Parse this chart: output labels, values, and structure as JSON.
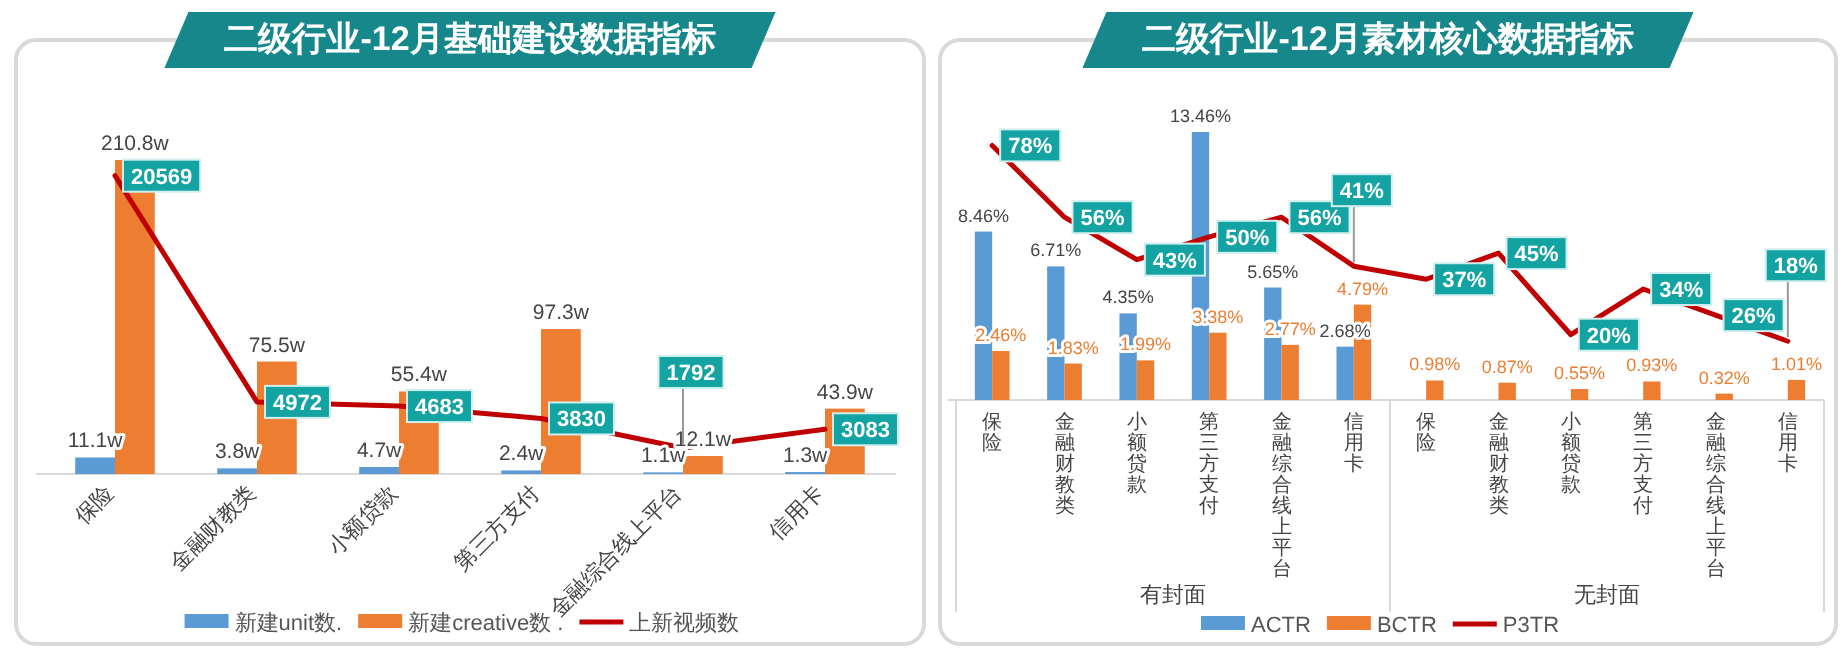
{
  "chart_data": [
    {
      "type": "bar",
      "title": "二级行业-12月基础建设数据指标",
      "legend": "bottom",
      "data_labels": true,
      "categories": [
        "保险",
        "金融财教类",
        "小额贷款",
        "第三方支付",
        "金融综合线上平台",
        "信用卡"
      ],
      "series": [
        {
          "name": "新建unit数.",
          "color": "#5b9bd5",
          "values": [
            11.1,
            3.8,
            4.7,
            2.4,
            1.1,
            1.3
          ],
          "value_labels": [
            "11.1w",
            "3.8w",
            "4.7w",
            "2.4w",
            "1.1w",
            "1.3w"
          ]
        },
        {
          "name": "新建creative数 .",
          "color": "#ed7d31",
          "values": [
            210.8,
            75.5,
            55.4,
            97.3,
            12.1,
            43.9
          ],
          "value_labels": [
            "210.8w",
            "75.5w",
            "55.4w",
            "97.3w",
            "12.1w",
            "43.9w"
          ]
        },
        {
          "name": "上新视频数",
          "type": "line",
          "axis": "y2",
          "color": "#c00000",
          "values": [
            20569,
            4972,
            4683,
            3830,
            1792,
            3083
          ]
        }
      ]
    },
    {
      "type": "bar",
      "title": "二级行业-12月素材核心数据指标",
      "legend": "bottom",
      "data_labels": true,
      "categories": [
        "保险",
        "金融财教类",
        "小额贷款",
        "第三方支付",
        "金融综合线上平台",
        "信用卡",
        "保险",
        "金融财教类",
        "小额贷款",
        "第三方支付",
        "金融综合线上平台",
        "信用卡"
      ],
      "annotations": [
        "有封面",
        "无封面"
      ],
      "series": [
        {
          "name": "ACTR",
          "color": "#5b9bd5",
          "values": [
            8.46,
            6.71,
            4.35,
            13.46,
            5.65,
            2.68,
            null,
            null,
            null,
            null,
            null,
            null
          ],
          "value_labels": [
            "8.46%",
            "6.71%",
            "4.35%",
            "13.46%",
            "5.65%",
            "2.68%",
            null,
            null,
            null,
            null,
            null,
            null
          ]
        },
        {
          "name": "BCTR",
          "color": "#ed7d31",
          "values": [
            2.46,
            1.83,
            1.99,
            3.38,
            2.77,
            4.79,
            0.98,
            0.87,
            0.55,
            0.93,
            0.32,
            1.01
          ],
          "value_labels": [
            "2.46%",
            "1.83%",
            "1.99%",
            "3.38%",
            "2.77%",
            "4.79%",
            "0.98%",
            "0.87%",
            "0.55%",
            "0.93%",
            "0.32%",
            "1.01%"
          ]
        },
        {
          "name": "P3TR",
          "type": "line",
          "axis": "y2",
          "color": "#c00000",
          "values": [
            78,
            56,
            43,
            50,
            56,
            41,
            37,
            45,
            20,
            34,
            26,
            18
          ],
          "value_labels": [
            "78%",
            "56%",
            "43%",
            "50%",
            "56%",
            "41%",
            "37%",
            "45%",
            "20%",
            "34%",
            "26%",
            "18%"
          ]
        }
      ]
    }
  ]
}
